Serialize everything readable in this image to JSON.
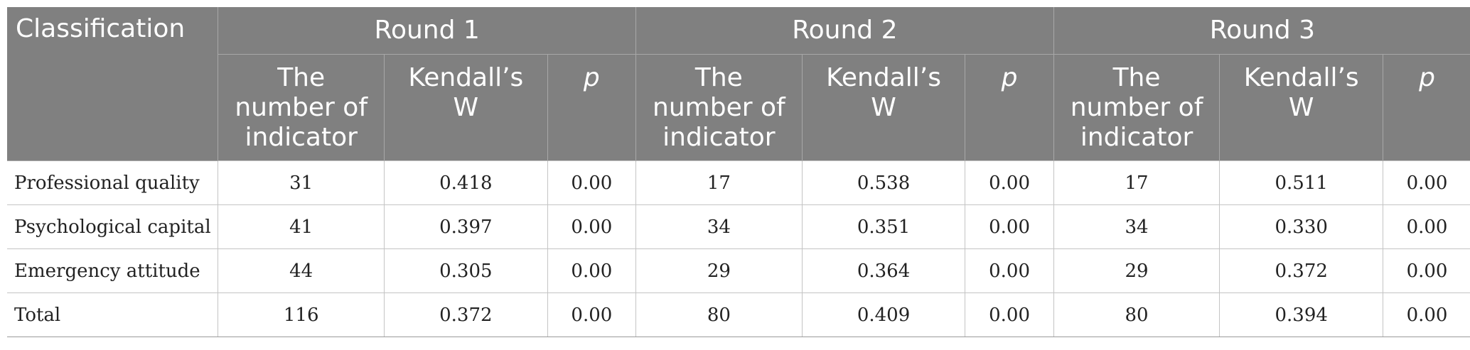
{
  "header": {
    "classification": "Classification",
    "rounds": [
      "Round 1",
      "Round 2",
      "Round 3"
    ],
    "sub_headers": {
      "number_line1": "The",
      "number_line2": "number of",
      "number_line3": "indicator",
      "kendall_line1": "Kendall’s",
      "kendall_line2": "W",
      "p": "p"
    }
  },
  "rows": [
    {
      "label": "Professional quality",
      "r1": {
        "n": "31",
        "w": "0.418",
        "p": "0.00"
      },
      "r2": {
        "n": "17",
        "w": "0.538",
        "p": "0.00"
      },
      "r3": {
        "n": "17",
        "w": "0.511",
        "p": "0.00"
      }
    },
    {
      "label": "Psychological capital",
      "r1": {
        "n": "41",
        "w": "0.397",
        "p": "0.00"
      },
      "r2": {
        "n": "34",
        "w": "0.351",
        "p": "0.00"
      },
      "r3": {
        "n": "34",
        "w": "0.330",
        "p": "0.00"
      }
    },
    {
      "label": "Emergency attitude",
      "r1": {
        "n": "44",
        "w": "0.305",
        "p": "0.00"
      },
      "r2": {
        "n": "29",
        "w": "0.364",
        "p": "0.00"
      },
      "r3": {
        "n": "29",
        "w": "0.372",
        "p": "0.00"
      }
    },
    {
      "label": "Total",
      "r1": {
        "n": "116",
        "w": "0.372",
        "p": "0.00"
      },
      "r2": {
        "n": "80",
        "w": "0.409",
        "p": "0.00"
      },
      "r3": {
        "n": "80",
        "w": "0.394",
        "p": "0.00"
      }
    }
  ],
  "colors": {
    "header_bg": "#808080",
    "header_text": "#ffffff",
    "body_text": "#222222",
    "grid": "#c4c4c4"
  }
}
